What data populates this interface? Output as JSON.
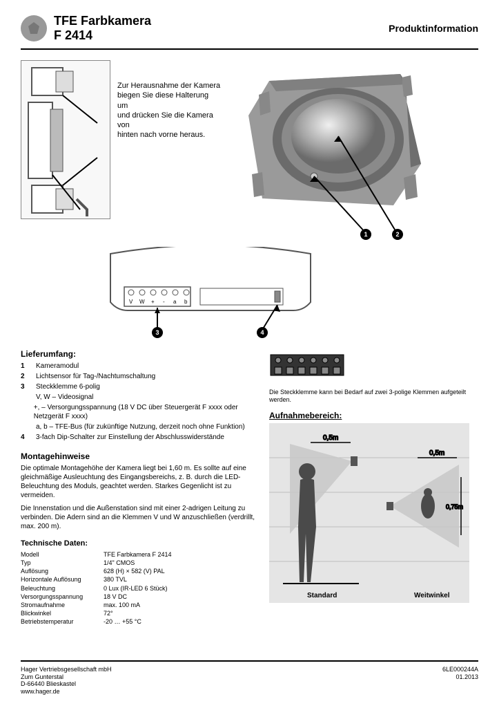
{
  "header": {
    "title_line1": "TFE Farbkamera",
    "model": "F 2414",
    "right": "Produktinformation"
  },
  "callout": {
    "line1": "Zur Herausnahme der Kamera",
    "line2": "biegen Sie diese Halterung um",
    "line3": "und drücken Sie die Kamera von",
    "line4": "hinten nach vorne heraus."
  },
  "terminal_labels": [
    "V",
    "W",
    "+",
    "-",
    "a",
    "b"
  ],
  "badges": {
    "a": "3",
    "b": "4",
    "c": "1",
    "d": "2"
  },
  "lieferumfang_heading": "Lieferumfang:",
  "lieferumfang": [
    {
      "n": "1",
      "t": "Kameramodul"
    },
    {
      "n": "2",
      "t": "Lichtsensor für Tag-/Nachtumschaltung"
    },
    {
      "n": "3",
      "t": "Steckklemme 6-polig"
    },
    {
      "n": "",
      "t": "V, W – Videosignal"
    },
    {
      "n": "",
      "t": "+, – Versorgungsspannung (18 V DC über Steuergerät F xxxx oder Netzgerät F xxxx)"
    },
    {
      "n": "",
      "t": "a, b – TFE-Bus (für zukünftige Nutzung, derzeit noch ohne Funktion)"
    },
    {
      "n": "4",
      "t": "3-fach Dip-Schalter zur Einstellung der Abschlusswiderstände"
    }
  ],
  "montage_heading": "Montagehinweise",
  "montage": [
    "Die optimale Montagehöhe der Kamera liegt bei 1,60 m. Es sollte auf eine gleichmäßige Ausleuchtung des Eingangsbereichs, z. B. durch die LED-Beleuchtung des Moduls, geachtet werden. Starkes Gegenlicht ist zu vermeiden.",
    "Die Innenstation und die Außenstation sind mit einer 2-adrigen Leitung zu verbinden. Die Adern sind an die Klemmen V und W anzuschließen (verdrillt, max. 200 m)."
  ],
  "tech_heading": "Technische Daten:",
  "tech": [
    {
      "l": "Modell",
      "v": "TFE Farbkamera F 2414"
    },
    {
      "l": "Typ",
      "v": "1/4\" CMOS"
    },
    {
      "l": "Auflösung",
      "v": "628 (H) × 582 (V) PAL"
    },
    {
      "l": "Horizontale Auflösung",
      "v": "380 TVL"
    },
    {
      "l": "Beleuchtung",
      "v": "0 Lux (IR-LED 6 Stück)"
    },
    {
      "l": "Versorgungsspannung",
      "v": "18 V DC"
    },
    {
      "l": "Stromaufnahme",
      "v": "max. 100 mA"
    },
    {
      "l": "Blickwinkel",
      "v": "72°"
    },
    {
      "l": "Betriebstemperatur",
      "v": "-20 … +55 °C"
    }
  ],
  "aufnahme_heading": "Aufnahmebereich:",
  "range": {
    "dist1": "0,5m",
    "dist2": "0,5m",
    "dist3": "0,75m",
    "labels": {
      "std": "Standard",
      "wide": "Weitwinkel"
    }
  },
  "footer": {
    "company": "Hager Vertriebsgesellschaft mbH",
    "street": "Zum Gunterstal",
    "city": "D-66440 Blieskastel",
    "web": "www.hager.de",
    "doc": "6LE000244A",
    "date": "01.2013"
  },
  "colors": {
    "bg": "#ffffff",
    "device_body": "#808080",
    "device_body_light": "#9a9a9a",
    "lens_outer": "#6b6b6b",
    "lens_mid": "#a5a5a5",
    "lens_inner": "#e8e8e8",
    "range_bg": "#e5e5e5",
    "range_cone": "#c8c8c8",
    "range_person": "#4a4a4a",
    "grid": "#bdbdbd"
  }
}
